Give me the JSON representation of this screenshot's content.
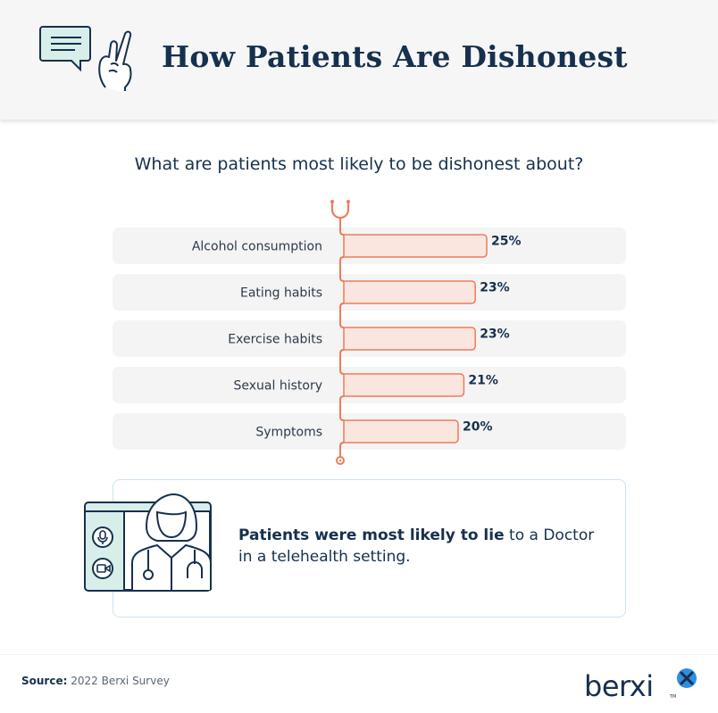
{
  "header": {
    "title": "How Patients Are Dishonest",
    "icon": "speech-bubble-crossed-fingers-icon"
  },
  "chart_data": {
    "type": "bar",
    "orientation": "horizontal",
    "title": "What are patients most likely to be dishonest about?",
    "categories": [
      "Alcohol consumption",
      "Eating habits",
      "Exercise habits",
      "Sexual history",
      "Symptoms"
    ],
    "values": [
      25,
      23,
      23,
      21,
      20
    ],
    "value_labels": [
      "25%",
      "23%",
      "23%",
      "21%",
      "20%"
    ],
    "unit": "%",
    "xlim": [
      0,
      25
    ],
    "grid": false,
    "decoration": "stethoscope-tube",
    "colors": {
      "bar_fill": "#fbe6df",
      "bar_stroke": "#ec7d5a",
      "row_bg": "#f4f4f4"
    }
  },
  "callout": {
    "bold": "Patients were most likely to lie",
    "rest": "to a Doctor in a telehealth setting.",
    "icon": "telehealth-doctor-icon"
  },
  "footer": {
    "source_label": "Source:",
    "source_text": "2022 Berxi Survey",
    "brand": "berxi",
    "brand_tm": "TM"
  },
  "colors": {
    "navy": "#16304f",
    "accent": "#ec7d5a",
    "teal": "#d7efe8",
    "brand_blue": "#2f8fe0"
  }
}
